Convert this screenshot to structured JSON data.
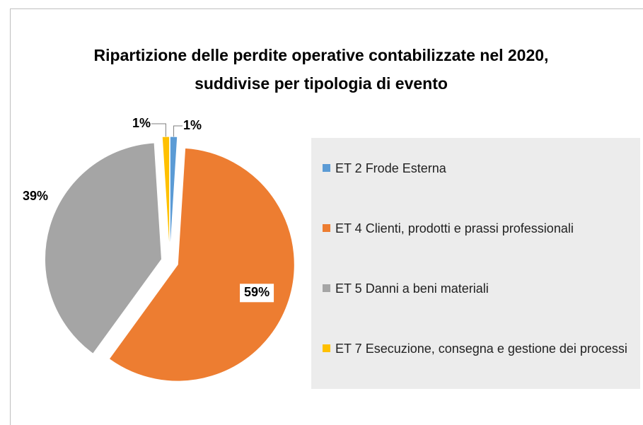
{
  "chart_data": {
    "type": "pie",
    "title": "Ripartizione delle perdite operative contabilizzate nel 2020, suddivise per tipologia di evento",
    "categories": [
      "ET 2 Frode Esterna",
      "ET 4 Clienti, prodotti e prassi professionali",
      "ET 5 Danni a beni materiali",
      "ET 7 Esecuzione, consegna e gestione dei processi"
    ],
    "values": [
      1,
      59,
      39,
      1
    ],
    "value_labels": [
      "1%",
      "59%",
      "39%",
      "1%"
    ],
    "colors": [
      "#5b9bd5",
      "#ed7d31",
      "#a5a5a5",
      "#ffc000"
    ],
    "legend": "right"
  }
}
